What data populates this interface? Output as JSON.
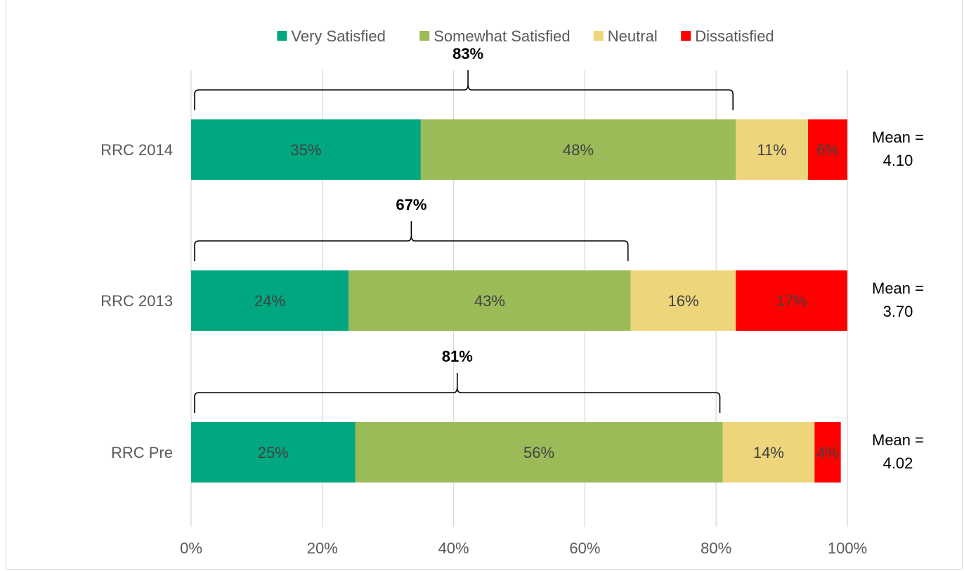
{
  "chart_data": {
    "type": "bar",
    "orientation": "horizontal",
    "stacked": true,
    "categories": [
      "RRC 2014",
      "RRC 2013",
      "RRC Pre"
    ],
    "series": [
      {
        "name": "Very Satisfied",
        "color": "#00a77f",
        "values": [
          35,
          24,
          25
        ]
      },
      {
        "name": "Somewhat Satisfied",
        "color": "#9bbb59",
        "values": [
          48,
          43,
          56
        ]
      },
      {
        "name": "Neutral",
        "color": "#eed57c",
        "values": [
          11,
          16,
          14
        ]
      },
      {
        "name": "Dissatisfied",
        "color": "#ff0000",
        "values": [
          6,
          17,
          4
        ]
      }
    ],
    "data_labels": [
      [
        "35%",
        "48%",
        "11%",
        "6%"
      ],
      [
        "24%",
        "43%",
        "16%",
        "17%"
      ],
      [
        "25%",
        "56%",
        "14%",
        "4%"
      ]
    ],
    "bracket_totals": [
      "83%",
      "67%",
      "81%"
    ],
    "bracket_values": [
      83,
      67,
      81
    ],
    "means": [
      {
        "label": "Mean =",
        "value": "4.10"
      },
      {
        "label": "Mean =",
        "value": "3.70"
      },
      {
        "label": "Mean =",
        "value": "4.02"
      }
    ],
    "xticks": [
      "0%",
      "20%",
      "40%",
      "60%",
      "80%",
      "100%"
    ],
    "xlim": [
      0,
      100
    ],
    "grid": true,
    "legend_position": "top"
  }
}
